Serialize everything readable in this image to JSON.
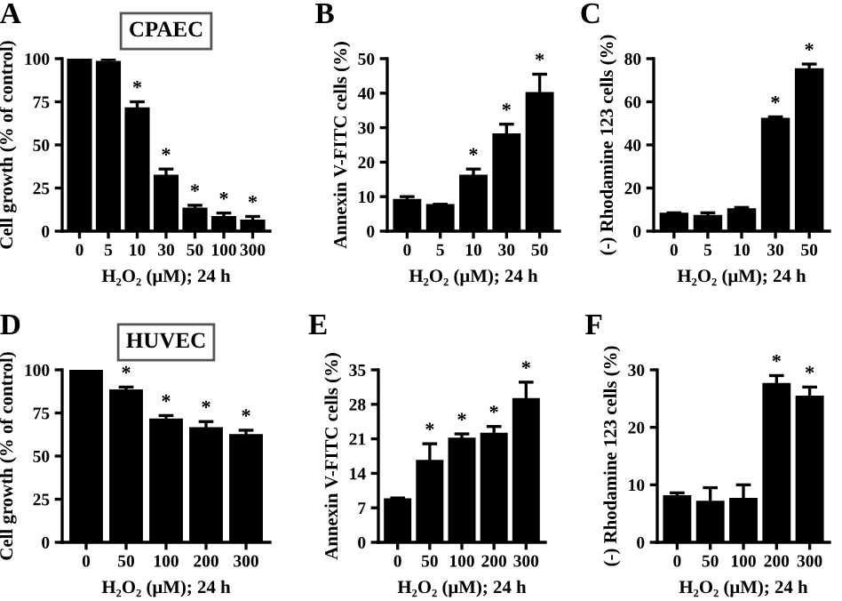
{
  "chart_data": [
    {
      "type": "bar",
      "title": "CPAEC",
      "xlabel": "H₂O₂ (μM); 24 h",
      "ylabel": "Cell growth (% of control)",
      "categories": [
        "0",
        "5",
        "10",
        "30",
        "50",
        "100",
        "300"
      ],
      "color": "#000000",
      "values": [
        100,
        98,
        71,
        32,
        13,
        8,
        6
      ],
      "errors": [
        0,
        1.5,
        4,
        4,
        2,
        2.5,
        2.5
      ],
      "ylim": [
        0,
        100
      ],
      "yticks": [
        0,
        25,
        50,
        75,
        100
      ],
      "grid": false,
      "annotations": [
        "A",
        {
          "text": "*",
          "x": "10",
          "y": 75
        },
        {
          "text": "*",
          "x": "30",
          "y": 36
        },
        {
          "text": "*",
          "x": "50",
          "y": 15
        },
        {
          "text": "*",
          "x": "100",
          "y": 10.5
        },
        {
          "text": "*",
          "x": "300",
          "y": 8.5
        }
      ]
    },
    {
      "type": "bar",
      "xlabel": "H₂O₂ (μM); 24 h",
      "ylabel": "Annexin V-FITC cells (%)",
      "categories": [
        "0",
        "5",
        "10",
        "30",
        "50"
      ],
      "color": "#000000",
      "values": [
        9,
        7.5,
        16,
        28,
        40
      ],
      "errors": [
        1,
        0.3,
        2,
        3,
        5.5
      ],
      "ylim": [
        0,
        50
      ],
      "yticks": [
        0,
        10,
        20,
        30,
        40,
        50
      ],
      "grid": false,
      "annotations": [
        "B",
        {
          "text": "*",
          "x": "10",
          "y": 18
        },
        {
          "text": "*",
          "x": "30",
          "y": 31
        },
        {
          "text": "*",
          "x": "50",
          "y": 45.5
        }
      ]
    },
    {
      "type": "bar",
      "xlabel": "H₂O₂ (μM); 24 h",
      "ylabel": "(-) Rhodamine 123 cells (%)",
      "categories": [
        "0",
        "5",
        "10",
        "30",
        "50"
      ],
      "color": "#000000",
      "values": [
        8,
        7,
        10,
        52,
        75
      ],
      "errors": [
        0.5,
        1.5,
        1,
        1,
        2.5
      ],
      "ylim": [
        0,
        80
      ],
      "yticks": [
        0,
        20,
        40,
        60,
        80
      ],
      "grid": false,
      "annotations": [
        "C",
        {
          "text": "*",
          "x": "30",
          "y": 53
        },
        {
          "text": "*",
          "x": "50",
          "y": 77.5
        }
      ]
    },
    {
      "type": "bar",
      "title": "HUVEC",
      "xlabel": "H₂O₂ (μM); 24 h",
      "ylabel": "Cell growth (% of control)",
      "categories": [
        "0",
        "50",
        "100",
        "200",
        "300"
      ],
      "color": "#000000",
      "values": [
        100,
        88,
        71,
        66,
        62
      ],
      "errors": [
        0,
        2,
        2.5,
        4,
        3
      ],
      "ylim": [
        0,
        100
      ],
      "yticks": [
        0,
        25,
        50,
        75,
        100
      ],
      "grid": false,
      "annotations": [
        "D",
        {
          "text": "*",
          "x": "50",
          "y": 90
        },
        {
          "text": "*",
          "x": "100",
          "y": 73.5
        },
        {
          "text": "*",
          "x": "200",
          "y": 70
        },
        {
          "text": "*",
          "x": "300",
          "y": 65
        }
      ]
    },
    {
      "type": "bar",
      "xlabel": "H₂O₂ (μM); 24 h",
      "ylabel": "Annexin V-FITC cells (%)",
      "categories": [
        "0",
        "50",
        "100",
        "200",
        "300"
      ],
      "color": "#000000",
      "values": [
        8.7,
        16.5,
        21,
        22,
        29
      ],
      "errors": [
        0.3,
        3.5,
        1,
        1.5,
        3.5
      ],
      "ylim": [
        0,
        35
      ],
      "yticks": [
        0,
        7,
        14,
        21,
        28,
        35
      ],
      "grid": false,
      "annotations": [
        "E",
        {
          "text": "*",
          "x": "50",
          "y": 20
        },
        {
          "text": "*",
          "x": "100",
          "y": 22
        },
        {
          "text": "*",
          "x": "200",
          "y": 23.5
        },
        {
          "text": "*",
          "x": "300",
          "y": 32.5
        }
      ]
    },
    {
      "type": "bar",
      "xlabel": "H₂O₂ (μM); 24 h",
      "ylabel": "(-) Rhodamine 123 cells (%)",
      "categories": [
        "0",
        "50",
        "100",
        "200",
        "300"
      ],
      "color": "#000000",
      "values": [
        8,
        7,
        7.5,
        27.5,
        25.3
      ],
      "errors": [
        0.6,
        2.5,
        2.5,
        1.5,
        1.7
      ],
      "ylim": [
        0,
        30
      ],
      "yticks": [
        0,
        10,
        20,
        30
      ],
      "grid": false,
      "annotations": [
        "F",
        {
          "text": "*",
          "x": "200",
          "y": 29
        },
        {
          "text": "*",
          "x": "300",
          "y": 27
        }
      ]
    }
  ]
}
